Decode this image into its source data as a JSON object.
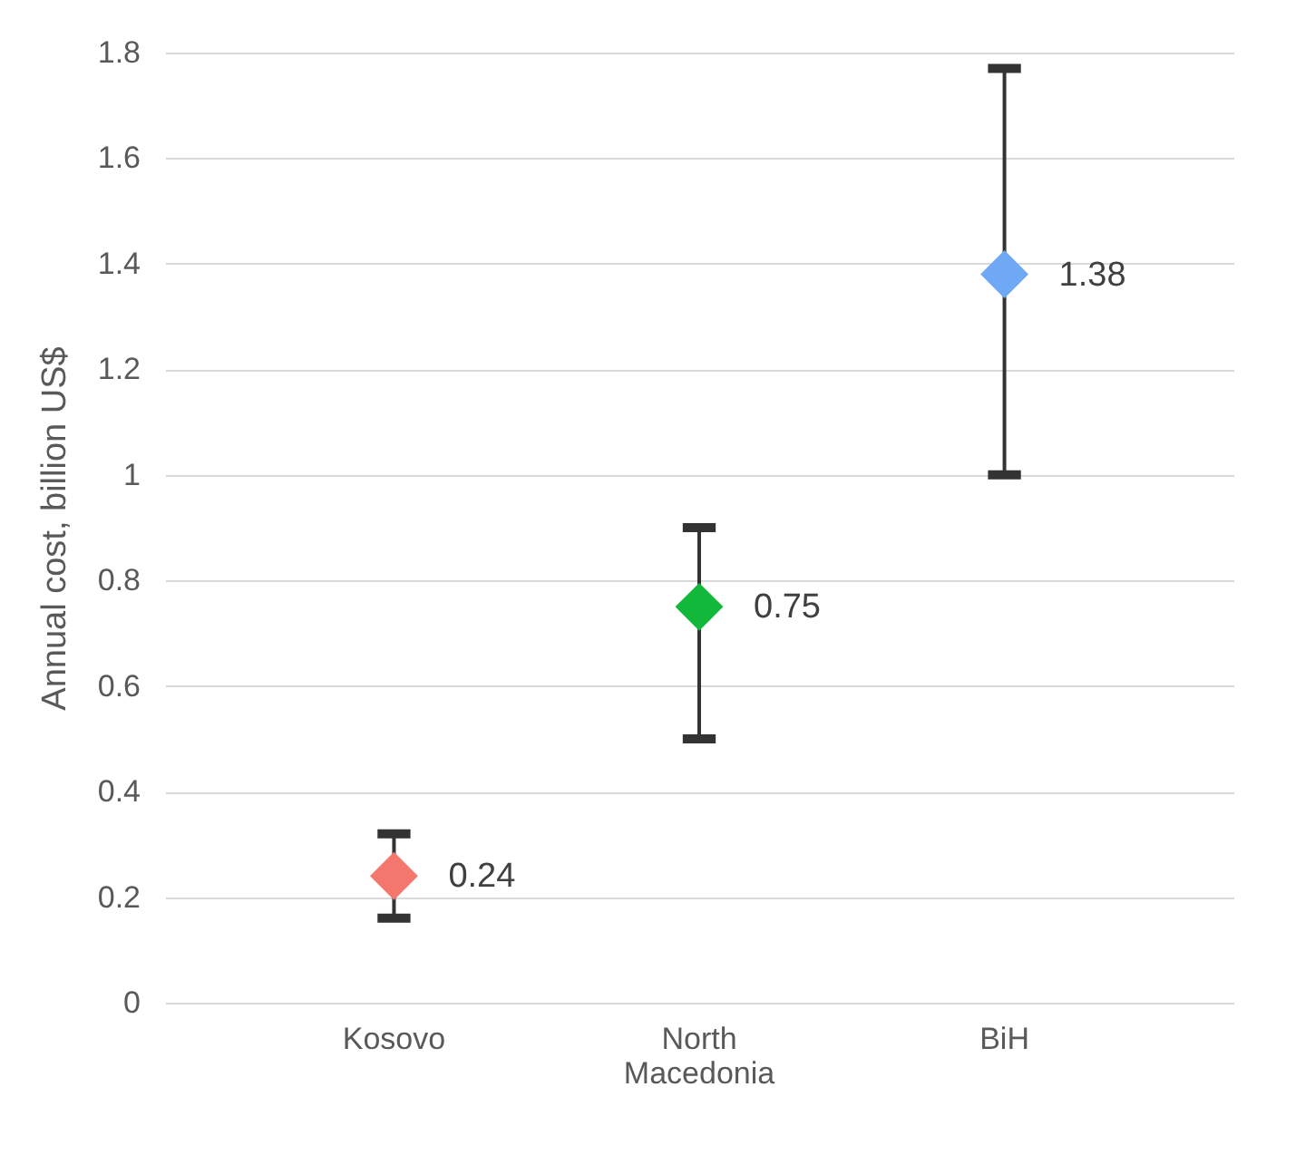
{
  "chart_data": {
    "type": "scatter",
    "ylabel": "Annual cost, billion US$",
    "categories": [
      "Kosovo",
      "North Macedonia",
      "BiH"
    ],
    "values": [
      0.24,
      0.75,
      1.38
    ],
    "colors": [
      "#f4776e",
      "#12b83a",
      "#6fa8f5"
    ],
    "errors": [
      [
        0.16,
        0.32
      ],
      [
        0.5,
        0.9
      ],
      [
        1.0,
        1.77
      ]
    ],
    "ylim": [
      0,
      1.8
    ],
    "yticks": [
      0,
      0.2,
      0.4,
      0.6,
      0.8,
      1,
      1.2,
      1.4,
      1.6,
      1.8
    ],
    "grid": "y",
    "marker": "diamond",
    "data_labels": true
  }
}
